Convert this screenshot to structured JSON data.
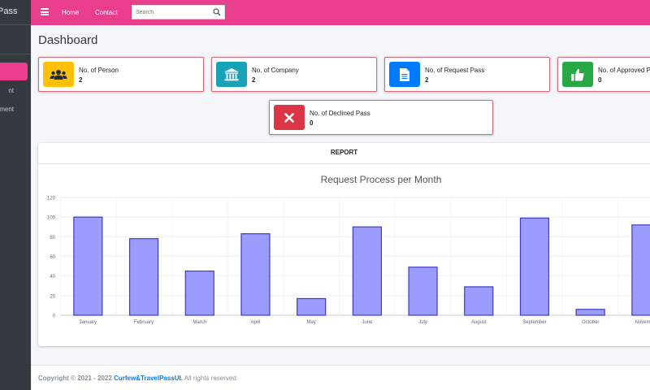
{
  "sidebar": {
    "brand": "Pass",
    "items": [
      {
        "label": "nt"
      },
      {
        "label": "ment"
      }
    ]
  },
  "navbar": {
    "home": "Home",
    "contact": "Contact",
    "search_placeholder": "Search"
  },
  "page_title": "Dashboard",
  "info_boxes": [
    {
      "label": "No. of Person",
      "value": "2",
      "icon": "users-icon",
      "color": "#ffc107"
    },
    {
      "label": "No. of Company",
      "value": "2",
      "icon": "bank-icon",
      "color": "#17a2b8"
    },
    {
      "label": "No. of Request Pass",
      "value": "2",
      "icon": "document-icon",
      "color": "#007bff"
    },
    {
      "label": "No. of Approved Pass",
      "value": "0",
      "icon": "thumbs-up-icon",
      "color": "#28a745"
    },
    {
      "label": "No. of Declined Pass",
      "value": "0",
      "icon": "close-icon",
      "color": "#dc3545"
    }
  ],
  "report": {
    "title": "REPORT"
  },
  "chart_data": {
    "type": "bar",
    "title": "Request Process per Month",
    "categories": [
      "January",
      "February",
      "March",
      "April",
      "May",
      "June",
      "July",
      "August",
      "September",
      "October",
      "November"
    ],
    "values": [
      100,
      78,
      45,
      83,
      17,
      90,
      49,
      29,
      99,
      6,
      92
    ],
    "ylim": [
      0,
      120
    ],
    "yticks": [
      0,
      20,
      40,
      60,
      80,
      100,
      120
    ],
    "grid": true,
    "bar_fill": "#9c9cff",
    "bar_stroke": "#3c3ccf"
  },
  "footer": {
    "prefix": "Copyright © 2021 - 2022",
    "link": "Curfew&TravelPassUI.",
    "suffix": "All rights reserved."
  }
}
